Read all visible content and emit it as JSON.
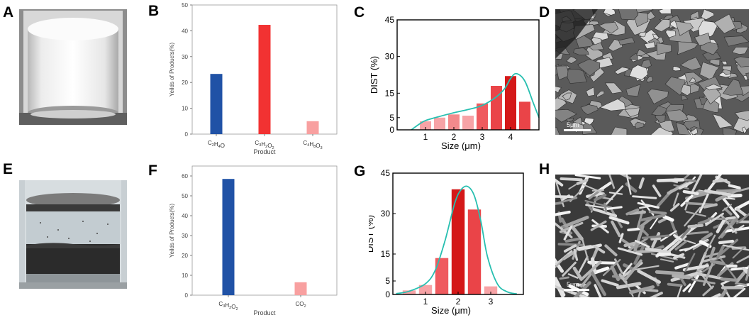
{
  "panels": {
    "A": "A",
    "B": "B",
    "C": "C",
    "D": "D",
    "E": "E",
    "F": "F",
    "G": "G",
    "H": "H"
  },
  "photos": {
    "A": {
      "subject": "white powder in glass vial",
      "colors": {
        "glass": "#cfcfcf",
        "powder": "#f4f4f4",
        "shadow": "#6a6a6a"
      }
    },
    "E": {
      "subject": "black particles in liquid in glass vial",
      "colors": {
        "liquid": "#c9d1d6",
        "sediment": "#2b2b2b",
        "band": "#3a3a3a"
      }
    }
  },
  "sem": {
    "D": {
      "scale_label": "5μm"
    },
    "H": {
      "scale_label": "5μm"
    }
  },
  "chart_data": [
    {
      "id": "B",
      "type": "bar",
      "xlabel": "Product",
      "ylabel": "Yeilds of Products(%)",
      "ylim": [
        0,
        50
      ],
      "yticks": [
        0,
        10,
        20,
        30,
        40,
        50
      ],
      "bars": [
        {
          "main": "C",
          "parts": [
            [
              "C",
              ""
            ],
            [
              "2",
              "sub"
            ],
            [
              "H",
              ""
            ],
            [
              "4",
              "sub"
            ],
            [
              "O",
              ""
            ]
          ],
          "value": 23.3,
          "color": "#2052a6"
        },
        {
          "main": "C",
          "parts": [
            [
              "C",
              ""
            ],
            [
              "3",
              "sub"
            ],
            [
              "H",
              ""
            ],
            [
              "2",
              "sub"
            ],
            [
              "O",
              ""
            ],
            [
              "2",
              "sub"
            ]
          ],
          "value": 42.3,
          "color": "#f23232"
        },
        {
          "main": "C",
          "parts": [
            [
              "C",
              ""
            ],
            [
              "4",
              "sub"
            ],
            [
              "H",
              ""
            ],
            [
              "8",
              "sub"
            ],
            [
              "O",
              ""
            ],
            [
              "3",
              "sub"
            ]
          ],
          "value": 5.0,
          "color": "#f8a0a0"
        }
      ]
    },
    {
      "id": "F",
      "type": "bar",
      "xlabel": "Product",
      "ylabel": "Yeilds of Products(%)",
      "ylim": [
        0,
        65
      ],
      "yticks": [
        0,
        10,
        20,
        30,
        40,
        50,
        60
      ],
      "bars": [
        {
          "main": "C",
          "parts": [
            [
              "C",
              ""
            ],
            [
              "3",
              "sub"
            ],
            [
              "H",
              ""
            ],
            [
              "2",
              "sub"
            ],
            [
              "O",
              ""
            ],
            [
              "2",
              "sub"
            ]
          ],
          "value": 58.5,
          "color": "#2052a6"
        },
        {
          "main": "C",
          "parts": [
            [
              "CO",
              ""
            ],
            [
              "2",
              "sub"
            ]
          ],
          "value": 6.5,
          "color": "#f8a0a0"
        }
      ]
    },
    {
      "id": "C",
      "type": "bar",
      "xlabel": "Size (μm)",
      "ylabel": "DIST (%)",
      "xlim": [
        0,
        5
      ],
      "ylim": [
        0,
        45
      ],
      "xticks": [
        1,
        2,
        3,
        4
      ],
      "yticks": [
        0,
        5,
        15,
        30,
        45
      ],
      "bar_width": 0.4,
      "bars": [
        {
          "x": 1.0,
          "value": 3.5,
          "color": "#f7a3a6"
        },
        {
          "x": 1.5,
          "value": 5.0,
          "color": "#f7a3a6"
        },
        {
          "x": 2.0,
          "value": 6.3,
          "color": "#f28a8c"
        },
        {
          "x": 2.5,
          "value": 5.8,
          "color": "#f7a3a6"
        },
        {
          "x": 3.0,
          "value": 10.8,
          "color": "#ef5a5e"
        },
        {
          "x": 3.5,
          "value": 18.0,
          "color": "#ea4448"
        },
        {
          "x": 4.0,
          "value": 22.0,
          "color": "#d41818"
        },
        {
          "x": 4.5,
          "value": 11.5,
          "color": "#ea4448"
        }
      ],
      "curve": {
        "color": "#27bfb0",
        "x": [
          0.5,
          0.8,
          1.0,
          1.5,
          2.0,
          2.5,
          3.0,
          3.5,
          3.8,
          4.0,
          4.2,
          4.5,
          4.8,
          5.0
        ],
        "y": [
          0,
          2.5,
          3.8,
          5.5,
          7.0,
          8.3,
          10.0,
          13.5,
          17.0,
          21.0,
          23.0,
          20.0,
          11.0,
          5.0
        ]
      }
    },
    {
      "id": "G",
      "type": "bar",
      "xlabel": "Size (μm)",
      "ylabel": "DIST (%)",
      "xlim": [
        0,
        4
      ],
      "ylim": [
        0,
        45
      ],
      "xticks": [
        1,
        2,
        3
      ],
      "yticks": [
        0,
        5,
        15,
        30,
        45
      ],
      "bar_width": 0.4,
      "bars": [
        {
          "x": 0.5,
          "value": 1.5,
          "color": "#f7a3a6"
        },
        {
          "x": 1.0,
          "value": 3.5,
          "color": "#f7a3a6"
        },
        {
          "x": 1.5,
          "value": 13.5,
          "color": "#ef5a5e"
        },
        {
          "x": 2.0,
          "value": 39.0,
          "color": "#d41818"
        },
        {
          "x": 2.5,
          "value": 31.5,
          "color": "#ea4448"
        },
        {
          "x": 3.0,
          "value": 3.0,
          "color": "#f7a3a6"
        }
      ],
      "curve": {
        "color": "#27bfb0",
        "x": [
          0.1,
          0.5,
          1.0,
          1.3,
          1.6,
          1.9,
          2.1,
          2.3,
          2.5,
          2.7,
          2.9,
          3.2,
          3.5,
          3.8
        ],
        "y": [
          0.3,
          1.2,
          4.0,
          9.0,
          20.0,
          34.0,
          39.0,
          40.0,
          36.5,
          27.0,
          14.0,
          4.0,
          1.0,
          0.2
        ]
      }
    }
  ]
}
